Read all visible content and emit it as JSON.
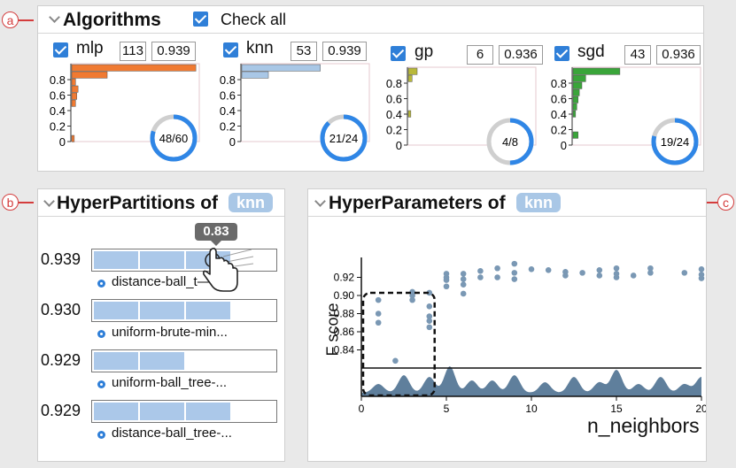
{
  "callouts": {
    "a": "a",
    "b": "b",
    "c": "c"
  },
  "algorithms_panel": {
    "title": "Algorithms",
    "check_all_label": "Check all",
    "items": [
      {
        "name": "mlp",
        "count": "113",
        "score": "0.939",
        "ring_label": "48/60",
        "ring_fraction": 0.8,
        "color": "#f07a32",
        "bars": [
          0.98,
          0.28,
          0.03,
          0.05,
          0.04,
          0.03,
          0.0,
          0.0,
          0.0,
          0.0,
          0.02
        ]
      },
      {
        "name": "knn",
        "count": "53",
        "score": "0.939",
        "ring_label": "21/24",
        "ring_fraction": 0.875,
        "color": "#a9c7e6",
        "bars": [
          0.62,
          0.21,
          0,
          0,
          0,
          0,
          0,
          0,
          0,
          0,
          0
        ]
      },
      {
        "name": "gp",
        "count": "6",
        "score": "0.936",
        "ring_label": "4/8",
        "ring_fraction": 0.5,
        "color": "#b8b83a",
        "bars": [
          0.07,
          0.03,
          0,
          0,
          0,
          0,
          0.02,
          0,
          0,
          0,
          0
        ]
      },
      {
        "name": "sgd",
        "count": "43",
        "score": "0.936",
        "ring_label": "19/24",
        "ring_fraction": 0.79,
        "color": "#3aa53a",
        "bars": [
          0.37,
          0.1,
          0.07,
          0.05,
          0.04,
          0.03,
          0.02,
          0,
          0,
          0.04,
          0
        ]
      }
    ],
    "axis_ticks": [
      "0.8",
      "0.6",
      "0.4",
      "0.2",
      "0"
    ]
  },
  "hyperpartitions_panel": {
    "title": "HyperPartitions of",
    "algo_tag": "knn",
    "tooltip": "0.83",
    "rows": [
      {
        "score": "0.939",
        "name": "distance-ball_t—...",
        "segments": 3
      },
      {
        "score": "0.930",
        "name": "uniform-brute-min...",
        "segments": 3
      },
      {
        "score": "0.929",
        "name": "uniform-ball_tree-...",
        "segments": 2
      },
      {
        "score": "0.929",
        "name": "distance-ball_tree-...",
        "segments": 3
      }
    ]
  },
  "hyperparameters_panel": {
    "title": "HyperParameters of",
    "algo_tag": "knn",
    "chart_data": {
      "type": "scatter",
      "xlabel": "n_neighbors",
      "ylabel": "F score",
      "xlim": [
        0,
        20
      ],
      "ylim": [
        0.82,
        0.94
      ],
      "x_ticks": [
        "0",
        "5",
        "10",
        "15",
        "20"
      ],
      "y_ticks": [
        "0.84",
        "0.86",
        "0.88",
        "0.90",
        "0.92"
      ],
      "points": [
        [
          1,
          0.87
        ],
        [
          1,
          0.88
        ],
        [
          1,
          0.895
        ],
        [
          2,
          0.828
        ],
        [
          3,
          0.895
        ],
        [
          3,
          0.9
        ],
        [
          3,
          0.904
        ],
        [
          4,
          0.865
        ],
        [
          4,
          0.872
        ],
        [
          4,
          0.877
        ],
        [
          4,
          0.888
        ],
        [
          4,
          0.903
        ],
        [
          5,
          0.91
        ],
        [
          5,
          0.917
        ],
        [
          5,
          0.92
        ],
        [
          5,
          0.924
        ],
        [
          6,
          0.902
        ],
        [
          6,
          0.912
        ],
        [
          6,
          0.918
        ],
        [
          6,
          0.924
        ],
        [
          7,
          0.92
        ],
        [
          7,
          0.927
        ],
        [
          8,
          0.92
        ],
        [
          8,
          0.93
        ],
        [
          9,
          0.918
        ],
        [
          9,
          0.925
        ],
        [
          9,
          0.935
        ],
        [
          10,
          0.929
        ],
        [
          11,
          0.928
        ],
        [
          12,
          0.922
        ],
        [
          12,
          0.926
        ],
        [
          13,
          0.925
        ],
        [
          14,
          0.922
        ],
        [
          14,
          0.928
        ],
        [
          15,
          0.92
        ],
        [
          15,
          0.924
        ],
        [
          15,
          0.93
        ],
        [
          16,
          0.922
        ],
        [
          17,
          0.925
        ],
        [
          17,
          0.93
        ],
        [
          19,
          0.925
        ],
        [
          20,
          0.919
        ],
        [
          20,
          0.923
        ],
        [
          20,
          0.929
        ]
      ],
      "density_color": "#5f7f9c",
      "point_color": "#7a98b4"
    }
  }
}
